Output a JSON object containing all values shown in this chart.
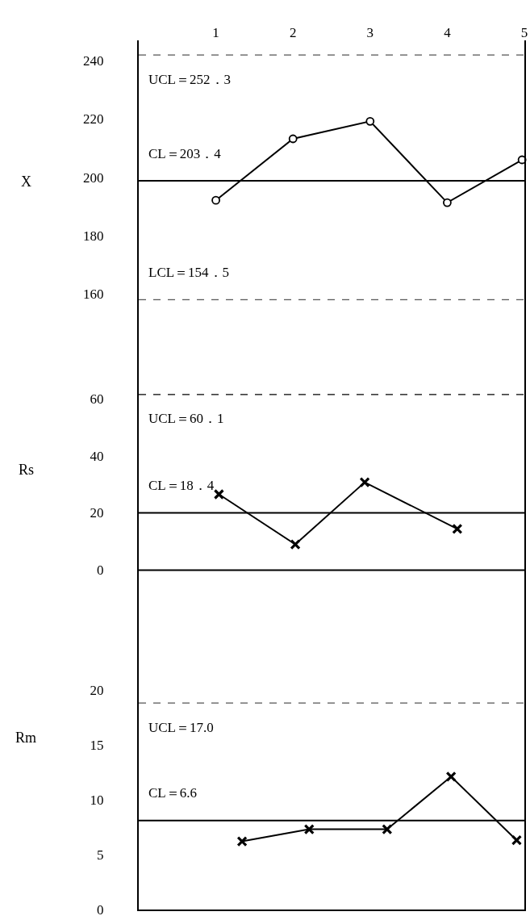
{
  "chart_data": [
    {
      "type": "line",
      "ylabel": "X",
      "x": [
        1,
        2,
        3,
        4,
        4.97
      ],
      "xlim": [
        0,
        5
      ],
      "xticks": [
        1,
        2,
        3,
        4,
        5
      ],
      "ylim": [
        139,
        247
      ],
      "yticks": [
        160,
        180,
        200,
        220,
        240
      ],
      "marker": "circle",
      "line_style": "solid",
      "series": [
        {
          "color": "#000000",
          "values": [
            192.1,
            213.2,
            219.2,
            191.3,
            206
          ]
        }
      ],
      "ref_lines": [
        {
          "axis": "y",
          "value": 242,
          "label": "UCL＝252．3",
          "color": "#555555",
          "line_style": "dashed"
        },
        {
          "axis": "y",
          "value": 198.8,
          "label": "CL＝203．4",
          "color": "#000000",
          "line_style": "solid"
        },
        {
          "axis": "y",
          "value": 158,
          "label": "LCL＝154．5",
          "color": "#555555",
          "line_style": "dashed"
        }
      ]
    },
    {
      "type": "line",
      "ylabel": "Rs",
      "x": [
        1.04,
        2.03,
        2.93,
        4.13
      ],
      "xlim": [
        0,
        5
      ],
      "xticks": [
        1,
        2,
        3,
        4,
        5
      ],
      "tick_labels": "y",
      "ylim": [
        -23.4,
        75.2
      ],
      "yticks": [
        0,
        20,
        40,
        60
      ],
      "marker": "cross",
      "line_style": "solid",
      "series": [
        {
          "color": "#000000",
          "values": [
            26.5,
            9,
            30.7,
            14.4
          ]
        }
      ],
      "ref_lines": [
        {
          "axis": "y",
          "value": 61.4,
          "label": "UCL＝60．1",
          "color": "#000000",
          "line_style": "dashed"
        },
        {
          "axis": "y",
          "value": 20,
          "label": "CL＝18．4",
          "color": "#000000",
          "line_style": "solid"
        },
        {
          "axis": "y",
          "value": 0,
          "color": "#000000",
          "line_style": "solid"
        }
      ]
    },
    {
      "type": "line",
      "ylabel": "Rm",
      "x": [
        1.34,
        2.21,
        3.22,
        4.05,
        4.9
      ],
      "xlim": [
        0,
        5
      ],
      "xticks": [
        1,
        2,
        3,
        4,
        5
      ],
      "tick_labels": "y",
      "ylim": [
        0,
        24.8
      ],
      "yticks": [
        0,
        5,
        10,
        15,
        20
      ],
      "marker": "cross",
      "line_style": "solid",
      "series": [
        {
          "color": "#000000",
          "values": [
            6.2,
            7.3,
            7.3,
            12.1,
            6.3
          ]
        }
      ],
      "ref_lines": [
        {
          "axis": "y",
          "value": 18.8,
          "label": "UCL＝17.0",
          "color": "#555555",
          "line_style": "dashed"
        },
        {
          "axis": "y",
          "value": 8.1,
          "label": "CL＝6.6",
          "color": "#000000",
          "line_style": "solid"
        }
      ]
    }
  ]
}
